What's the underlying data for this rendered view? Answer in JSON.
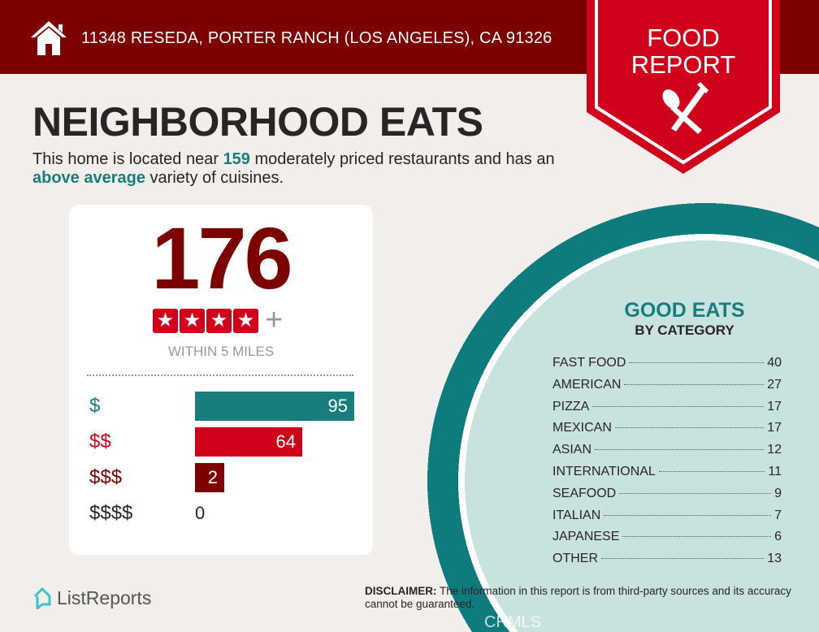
{
  "header": {
    "address": "11348 RESEDA, PORTER RANCH (LOS ANGELES), CA 91326",
    "badge_line1": "FOOD",
    "badge_line2": "REPORT",
    "home_icon": "house-icon",
    "utensils_icon": "spoon-fork-icon"
  },
  "title": "NEIGHBORHOOD EATS",
  "intro": {
    "p1": "This home is located near ",
    "count": "159",
    "p2": " moderately priced restaurants and has an ",
    "variety": "above average",
    "p3": " variety of cuisines."
  },
  "summary": {
    "total": "176",
    "stars": 4,
    "plus": "+",
    "within": "WITHIN 5 MILES",
    "price_levels": [
      {
        "label": "$",
        "value": 95,
        "color": "#177d7d"
      },
      {
        "label": "$$",
        "value": 64,
        "color": "#d0021b"
      },
      {
        "label": "$$$",
        "value": 2,
        "color": "#7c0000"
      },
      {
        "label": "$$$$",
        "value": 0,
        "color": "#2b2424"
      }
    ]
  },
  "categories": {
    "title": "GOOD EATS",
    "subtitle": "BY CATEGORY",
    "items": [
      {
        "name": "FAST FOOD",
        "count": "40"
      },
      {
        "name": "AMERICAN",
        "count": "27"
      },
      {
        "name": "PIZZA",
        "count": "17"
      },
      {
        "name": "MEXICAN",
        "count": "17"
      },
      {
        "name": "ASIAN",
        "count": "12"
      },
      {
        "name": "INTERNATIONAL",
        "count": "11"
      },
      {
        "name": "SEAFOOD",
        "count": "9"
      },
      {
        "name": "ITALIAN",
        "count": "7"
      },
      {
        "name": "JAPANESE",
        "count": "6"
      },
      {
        "name": "OTHER",
        "count": "13"
      }
    ]
  },
  "footer": {
    "logo": "ListReports",
    "disclaimer_label": "DISCLAIMER:",
    "disclaimer": " The information in this report is from third-party sources and its accuracy cannot be guaranteed.",
    "watermark": "CRMLS"
  },
  "colors": {
    "dark_red": "#7c0000",
    "red": "#d0021b",
    "teal": "#177d7d",
    "light_teal": "#c8e2e0"
  }
}
